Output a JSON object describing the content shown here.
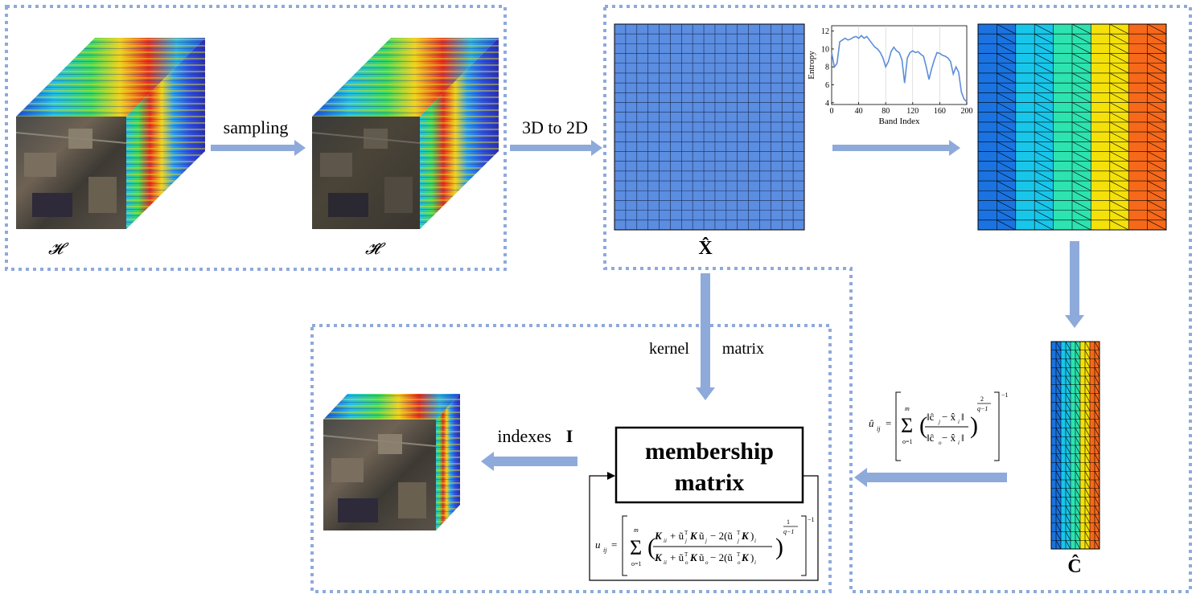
{
  "labels": {
    "h": "𝓗",
    "h_hat": "𝓗̂",
    "x_hat": "X̂",
    "c_hat": "Ĉ",
    "sampling": "sampling",
    "to2d": "3D to 2D",
    "kernel": "kernel",
    "matrix": "matrix",
    "indexes": "indexes",
    "indexes_sym": "I",
    "membership_line1": "membership",
    "membership_line2": "matrix"
  },
  "entropy_plot": {
    "ylabel": "Entropy",
    "xlabel": "Band Index",
    "x_ticks": [
      "0",
      "40",
      "80",
      "120",
      "160",
      "200"
    ],
    "y_ticks": [
      "4",
      "6",
      "8",
      "10",
      "12"
    ],
    "chart_data": {
      "type": "line",
      "xlim": [
        0,
        200
      ],
      "ylim": [
        3.8,
        12.6
      ],
      "x": [
        0,
        4,
        8,
        12,
        16,
        20,
        24,
        28,
        32,
        36,
        40,
        44,
        48,
        52,
        56,
        60,
        64,
        68,
        72,
        76,
        80,
        84,
        88,
        92,
        96,
        100,
        104,
        108,
        112,
        116,
        120,
        124,
        128,
        132,
        136,
        140,
        144,
        148,
        152,
        156,
        160,
        164,
        168,
        172,
        176,
        180,
        184,
        188,
        192,
        196,
        200
      ],
      "y": [
        9.6,
        8.0,
        8.4,
        10.8,
        11.0,
        11.2,
        11.0,
        11.1,
        11.3,
        11.4,
        11.2,
        11.5,
        11.2,
        11.4,
        11.0,
        10.6,
        10.2,
        10.0,
        9.6,
        9.0,
        8.0,
        8.6,
        9.7,
        10.2,
        9.8,
        9.6,
        8.8,
        6.2,
        9.0,
        9.6,
        9.8,
        9.6,
        9.7,
        9.4,
        9.2,
        8.0,
        6.6,
        7.8,
        8.8,
        9.6,
        9.5,
        9.3,
        9.2,
        9.0,
        8.6,
        7.2,
        8.0,
        7.4,
        5.2,
        4.4,
        4.1
      ]
    }
  },
  "color_matrix": {
    "columns": [
      "#1a73e0",
      "#1a73e0",
      "#18c6ea",
      "#18c6ea",
      "#2de3b0",
      "#2de3b0",
      "#f4e10a",
      "#f4e10a",
      "#f6681a",
      "#f6681a"
    ]
  },
  "formulas": {
    "u_hat": "û_ij = [ Σ_{o=1}^{m} ( ‖ĉ_j − x̂_i‖ / ‖ĉ_o − x̂_i‖ )^{2/(q−1)} ]^{−1}",
    "u_kernel": "u_ij = [ Σ_{o=1}^{m} ( (K_ii + ũ_jᵀKũ_j − 2(ũ_jᵀK)_i) / (K_ii + ũ_oᵀKũ_o − 2(ũ_oᵀK)_i) )^{1/(q−1)} ]^{−1}"
  },
  "colors": {
    "arrow": "#8eaadb",
    "dash": "#8eaadb",
    "grid_fill": "#5b8de0"
  }
}
